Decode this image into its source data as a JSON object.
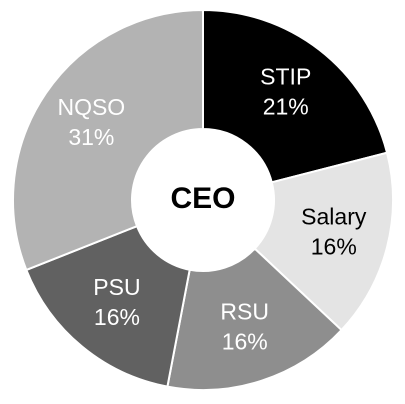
{
  "chart_data": {
    "type": "pie",
    "variant": "donut",
    "center_label": "CEO",
    "start_angle_deg": 0,
    "direction": "clockwise",
    "categories": [
      "STIP",
      "Salary",
      "RSU",
      "PSU",
      "NQSO"
    ],
    "values": [
      21,
      16,
      16,
      16,
      31
    ],
    "value_labels": [
      "21%",
      "16%",
      "16%",
      "16%",
      "31%"
    ],
    "unit": "%",
    "colors": [
      "#000000",
      "#e4e4e4",
      "#8e8e8e",
      "#616161",
      "#b3b3b3"
    ],
    "label_colors": [
      "#ffffff",
      "#000000",
      "#ffffff",
      "#ffffff",
      "#ffffff"
    ],
    "segment_stroke_color": "#ffffff",
    "legend": "none"
  }
}
